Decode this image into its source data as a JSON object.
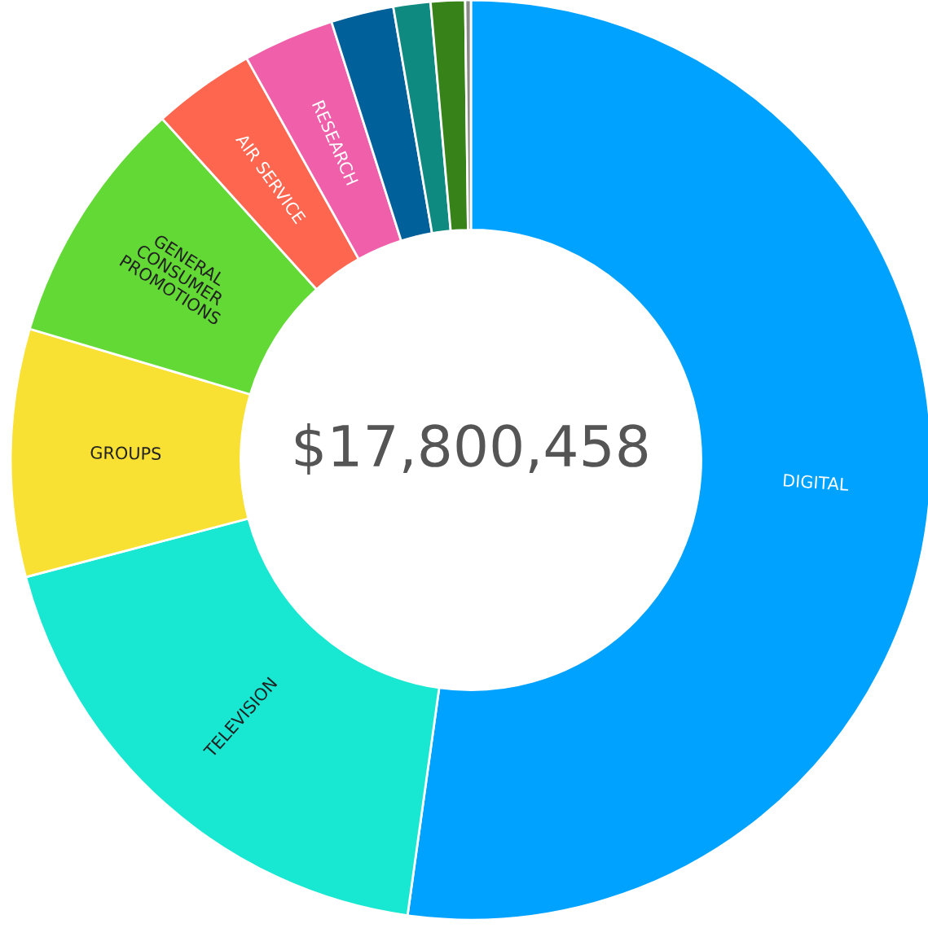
{
  "chart_data": {
    "type": "donut",
    "categories": [
      "DIGITAL",
      "TELEVISION",
      "GROUPS",
      "GENERAL\nCONSUMER\nPROMOTIONS",
      "AIR SERVICE",
      "RESEARCH",
      null,
      null,
      null,
      null
    ],
    "values": [
      52.2,
      18.7,
      8.7,
      8.7,
      3.6,
      3.2,
      2.2,
      1.3,
      1.2,
      0.2
    ],
    "colors": [
      "#00a2ff",
      "#18e7d1",
      "#f9e133",
      "#62d935",
      "#ff6650",
      "#ef5faa",
      "#00609a",
      "#0f8a80",
      "#378219",
      "#8a8a8a"
    ],
    "annotations": [
      "$17,800,458"
    ],
    "legend": false
  }
}
